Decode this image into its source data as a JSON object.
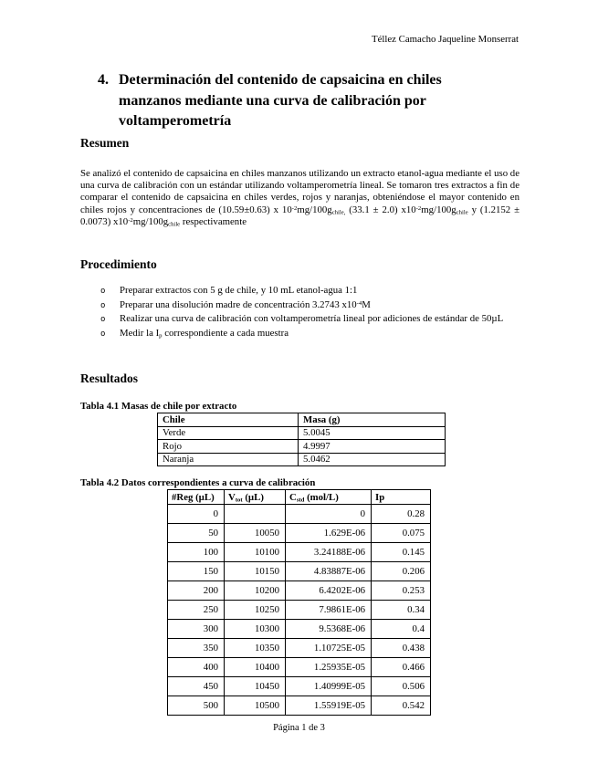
{
  "header": {
    "author": "Téllez Camacho Jaqueline Monserrat"
  },
  "title": {
    "number": "4.",
    "text": "Determinación del contenido de capsaicina en chiles manzanos mediante una curva de calibración por voltamperometría"
  },
  "resumen": {
    "heading": "Resumen",
    "paragraph": [
      {
        "t": "Se analizó el contenido de capsaicina en chiles manzanos utilizando un extracto etanol-agua mediante el uso de una curva de calibración con un estándar utilizando voltamperometría lineal. Se tomaron tres extractos a fin de comparar el contenido de capsaicina en chiles verdes, rojos y naranjas, obteniéndose el mayor contenido en chiles rojos y concentraciones de (10.59±0.63) x 10"
      },
      {
        "t": "-2",
        "m": "sup"
      },
      {
        "t": "mg/100g"
      },
      {
        "t": "chile,",
        "m": "sub"
      },
      {
        "t": " (33.1 ± 2.0) x10"
      },
      {
        "t": "-2",
        "m": "sup"
      },
      {
        "t": "mg/100g"
      },
      {
        "t": "chile",
        "m": "sub"
      },
      {
        "t": " y (1.2152 ± 0.0073) x10"
      },
      {
        "t": "-2",
        "m": "sup"
      },
      {
        "t": "mg/100g"
      },
      {
        "t": "chile",
        "m": "sub"
      },
      {
        "t": " respectivamente"
      }
    ]
  },
  "procedimiento": {
    "heading": "Procedimiento",
    "bullet_marker": "o",
    "items": [
      [
        {
          "t": "Preparar extractos con 5 g de chile, y 10 mL etanol-agua 1:1"
        }
      ],
      [
        {
          "t": "Preparar una disolución madre de concentración 3.2743 x10"
        },
        {
          "t": "-4",
          "m": "sup"
        },
        {
          "t": "M"
        }
      ],
      [
        {
          "t": "Realizar una curva de calibración con voltamperometría lineal por adiciones de estándar de 50µL"
        }
      ],
      [
        {
          "t": "Medir la I"
        },
        {
          "t": "p",
          "m": "sub"
        },
        {
          "t": " correspondiente a cada muestra"
        }
      ]
    ]
  },
  "resultados": {
    "heading": "Resultados",
    "tabla41": {
      "caption": "Tabla 4.1 Masas de chile por extracto",
      "headers": [
        "Chile",
        "Masa (g)"
      ],
      "rows": [
        [
          "Verde",
          "5.0045"
        ],
        [
          "Rojo",
          "4.9997"
        ],
        [
          "Naranja",
          "5.0462"
        ]
      ]
    },
    "tabla42": {
      "caption": "Tabla 4.2 Datos correspondientes a curva de calibración",
      "headers_rich": [
        [
          {
            "t": "#Reg (µL)"
          }
        ],
        [
          {
            "t": "V"
          },
          {
            "t": "tot",
            "m": "sub"
          },
          {
            "t": " (µL)"
          }
        ],
        [
          {
            "t": "C"
          },
          {
            "t": "std",
            "m": "sub"
          },
          {
            "t": " (mol/L)"
          }
        ],
        [
          {
            "t": "Ip"
          }
        ]
      ],
      "rows": [
        [
          "0",
          "",
          "0",
          "0.28"
        ],
        [
          "50",
          "10050",
          "1.629E-06",
          "0.075"
        ],
        [
          "100",
          "10100",
          "3.24188E-06",
          "0.145"
        ],
        [
          "150",
          "10150",
          "4.83887E-06",
          "0.206"
        ],
        [
          "200",
          "10200",
          "6.4202E-06",
          "0.253"
        ],
        [
          "250",
          "10250",
          "7.9861E-06",
          "0.34"
        ],
        [
          "300",
          "10300",
          "9.5368E-06",
          "0.4"
        ],
        [
          "350",
          "10350",
          "1.10725E-05",
          "0.438"
        ],
        [
          "400",
          "10400",
          "1.25935E-05",
          "0.466"
        ],
        [
          "450",
          "10450",
          "1.40999E-05",
          "0.506"
        ],
        [
          "500",
          "10500",
          "1.55919E-05",
          "0.542"
        ]
      ]
    }
  },
  "footer": {
    "page_indicator": "Página 1 de 3"
  }
}
